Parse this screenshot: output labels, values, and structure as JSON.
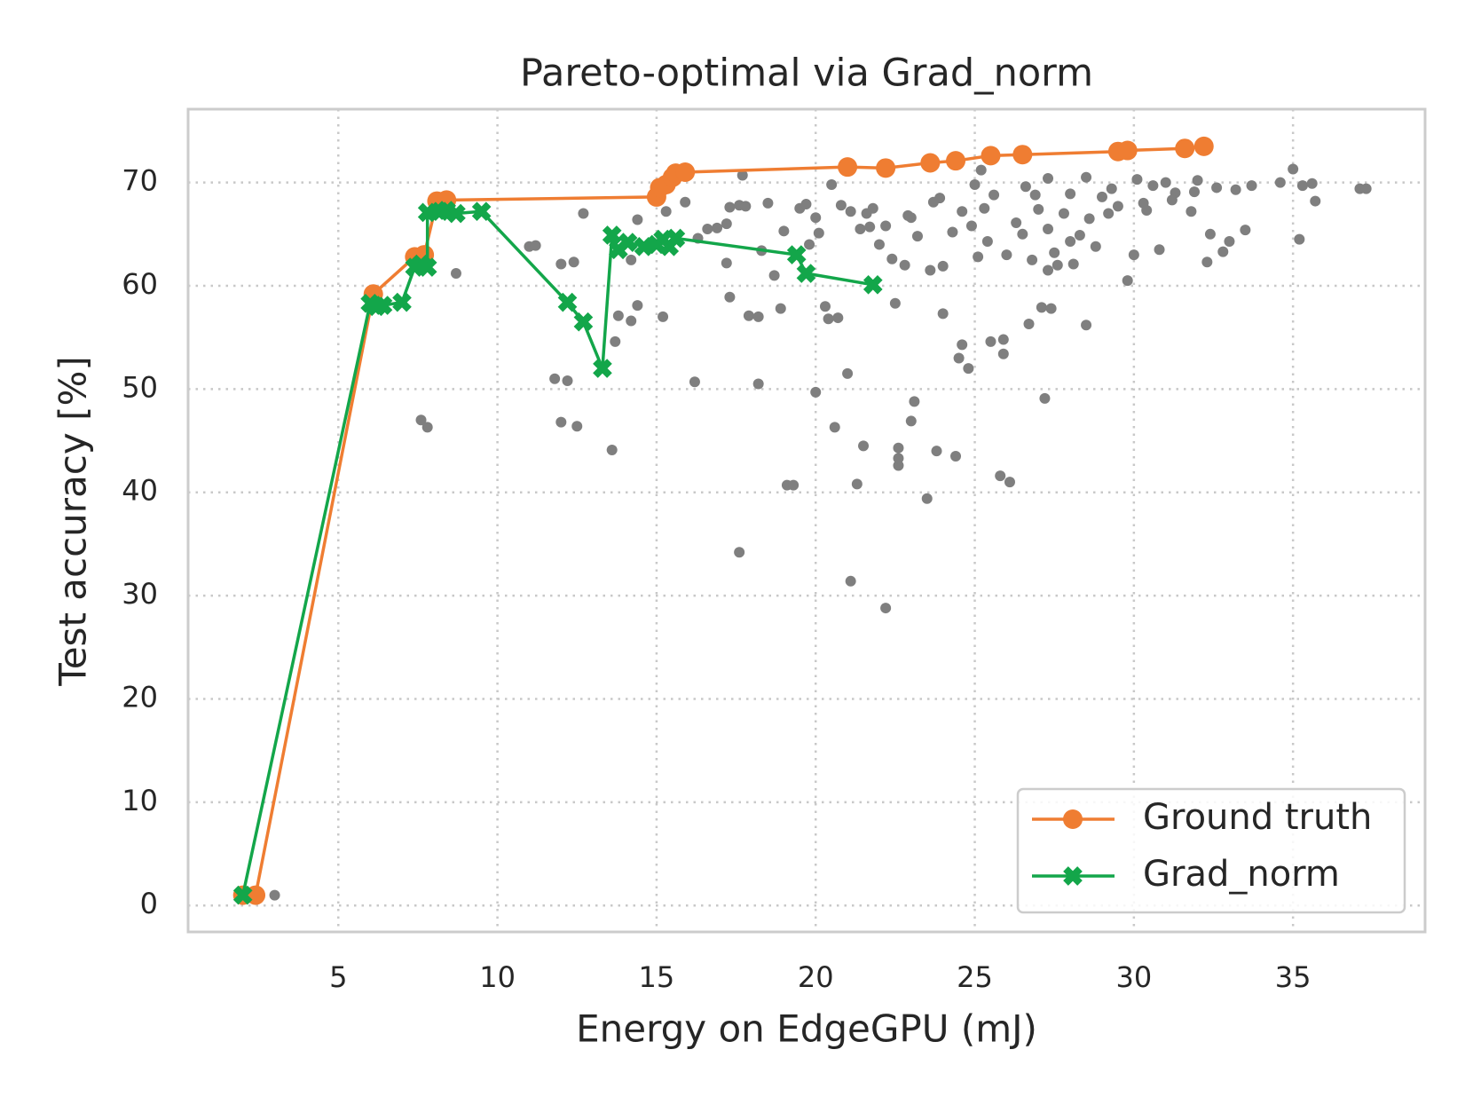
{
  "chart_data": {
    "type": "line",
    "title": "Pareto-optimal via Grad_norm",
    "xlabel": "Energy on EdgeGPU (mJ)",
    "ylabel": "Test accuracy [%]",
    "xlim": [
      0.28,
      39.15
    ],
    "ylim": [
      -2.56,
      77.1
    ],
    "xticks": [
      5,
      10,
      15,
      20,
      25,
      30,
      35
    ],
    "yticks": [
      0,
      10,
      20,
      30,
      40,
      50,
      60,
      70
    ],
    "grid": true,
    "legend": "lower right",
    "scatter": {
      "color": "#7f7f7f",
      "x": [
        3.0,
        7.6,
        7.8,
        8.7,
        11.0,
        11.2,
        11.8,
        12.2,
        12.0,
        12.5,
        12.0,
        12.4,
        12.7,
        13.6,
        13.7,
        13.8,
        14.2,
        14.4,
        14.2,
        14.4,
        15.2,
        15.3,
        15.9,
        16.2,
        16.3,
        16.6,
        16.9,
        17.2,
        17.2,
        17.3,
        17.3,
        17.6,
        17.8,
        17.6,
        17.7,
        17.9,
        18.2,
        18.2,
        18.3,
        18.5,
        18.7,
        18.9,
        19.0,
        19.1,
        19.3,
        19.5,
        19.7,
        19.8,
        20.0,
        20.0,
        20.1,
        20.3,
        20.4,
        20.5,
        20.6,
        20.7,
        21.0,
        21.1,
        21.1,
        21.3,
        21.4,
        21.5,
        21.8,
        21.7,
        22.0,
        22.2,
        22.2,
        22.4,
        22.5,
        22.6,
        22.6,
        22.6,
        22.9,
        23.0,
        23.1,
        23.2,
        23.5,
        23.6,
        23.8,
        23.9,
        24.0,
        24.0,
        24.4,
        24.5,
        24.6,
        24.8,
        24.9,
        25.1,
        25.3,
        25.5,
        25.6,
        25.8,
        25.9,
        25.9,
        26.1,
        26.3,
        26.5,
        26.7,
        26.6,
        27.0,
        27.1,
        27.2,
        27.3,
        27.4,
        27.3,
        27.6,
        27.8,
        28.0,
        28.3,
        28.5,
        28.5,
        28.8,
        29.0,
        29.3,
        29.5,
        29.8,
        30.0,
        30.3,
        30.6,
        30.8,
        31.0,
        31.3,
        31.9,
        32.0,
        32.3,
        32.4,
        32.6,
        32.8,
        33.0,
        33.2,
        33.5,
        33.7,
        34.6,
        35.0,
        35.3,
        35.6,
        35.7,
        35.2,
        37.1,
        37.3,
        24.6,
        25.0,
        26.9,
        27.3,
        28.0,
        28.6,
        29.2,
        30.4,
        31.2,
        26.0,
        27.5,
        22.8,
        23.0,
        24.3,
        25.4,
        26.8,
        28.1,
        21.6,
        20.8,
        23.7,
        25.2,
        30.1,
        31.8
      ],
      "y": [
        1,
        47,
        46.3,
        61.2,
        63.8,
        63.9,
        51,
        50.8,
        46.8,
        46.4,
        62.1,
        62.3,
        67.0,
        44.1,
        54.6,
        57.1,
        56.6,
        58.1,
        62.5,
        66.4,
        57.0,
        67.2,
        68.1,
        50.7,
        64.6,
        65.5,
        65.6,
        66.0,
        62.2,
        58.9,
        67.6,
        67.8,
        67.7,
        34.2,
        70.7,
        57.1,
        57.0,
        50.5,
        63.4,
        68.0,
        61.0,
        57.8,
        65.3,
        40.7,
        40.7,
        67.5,
        67.9,
        64.0,
        66.6,
        49.7,
        65.1,
        58.0,
        56.8,
        69.8,
        46.3,
        56.9,
        51.5,
        31.4,
        67.2,
        40.8,
        65.5,
        44.5,
        67.5,
        65.7,
        64.0,
        65.8,
        28.8,
        62.6,
        58.3,
        44.3,
        42.6,
        43.3,
        66.8,
        46.9,
        48.8,
        64.8,
        39.4,
        61.5,
        44.0,
        68.5,
        57.3,
        61.9,
        43.5,
        53.0,
        54.3,
        52.0,
        65.8,
        62.8,
        67.5,
        54.6,
        68.8,
        41.6,
        54.8,
        53.4,
        41.0,
        66.1,
        65.0,
        56.3,
        69.6,
        67.4,
        57.9,
        49.1,
        65.5,
        57.8,
        61.5,
        62.0,
        67.0,
        64.3,
        64.9,
        56.2,
        70.5,
        63.8,
        68.6,
        69.4,
        67.7,
        60.5,
        63.0,
        68.0,
        69.7,
        63.5,
        70.0,
        69.0,
        69.1,
        70.2,
        62.3,
        65.0,
        69.5,
        63.3,
        64.3,
        69.3,
        65.4,
        69.7,
        70.0,
        71.3,
        69.7,
        69.9,
        68.2,
        64.5,
        69.4,
        69.4,
        67.2,
        69.8,
        68.8,
        70.4,
        68.9,
        66.5,
        67.0,
        67.3,
        68.3,
        63.0,
        63.2,
        62.0,
        66.6,
        65.2,
        64.3,
        62.5,
        62.1,
        67.0,
        67.8,
        68.1,
        71.2,
        70.3,
        67.2
      ]
    },
    "series": [
      {
        "name": "Ground truth",
        "color": "#ef7d32",
        "marker": "o",
        "x": [
          2.0,
          2.4,
          6.1,
          7.4,
          7.7,
          8.1,
          8.4,
          15.0,
          15.1,
          15.3,
          15.5,
          15.6,
          15.9,
          21.0,
          22.2,
          23.6,
          24.4,
          25.5,
          26.5,
          29.5,
          29.8,
          31.6,
          32.2
        ],
        "values": [
          1,
          1,
          59.2,
          62.8,
          63,
          68.2,
          68.3,
          68.6,
          69.5,
          69.8,
          70.5,
          70.9,
          71.0,
          71.5,
          71.4,
          71.9,
          72.1,
          72.6,
          72.7,
          73.0,
          73.1,
          73.3,
          73.5
        ]
      },
      {
        "name": "Grad_norm",
        "color": "#13a64a",
        "marker": "X",
        "x": [
          2.0,
          6.0,
          6.2,
          6.4,
          7.0,
          7.4,
          7.6,
          7.8,
          7.8,
          8.2,
          8.4,
          8.7,
          9.5,
          12.2,
          12.7,
          13.3,
          13.6,
          13.8,
          14.1,
          14.6,
          15.0,
          15.2,
          15.4,
          15.6,
          19.4,
          19.7,
          21.8
        ],
        "values": [
          1,
          58.3,
          58,
          58.1,
          58.4,
          61.8,
          62.1,
          61.8,
          67.1,
          67.2,
          67.3,
          67.0,
          67.2,
          58.4,
          56.5,
          52,
          64.9,
          63.5,
          64.2,
          63.8,
          64.0,
          64.5,
          63.8,
          64.6,
          63.0,
          61.2,
          60.1
        ]
      }
    ]
  }
}
